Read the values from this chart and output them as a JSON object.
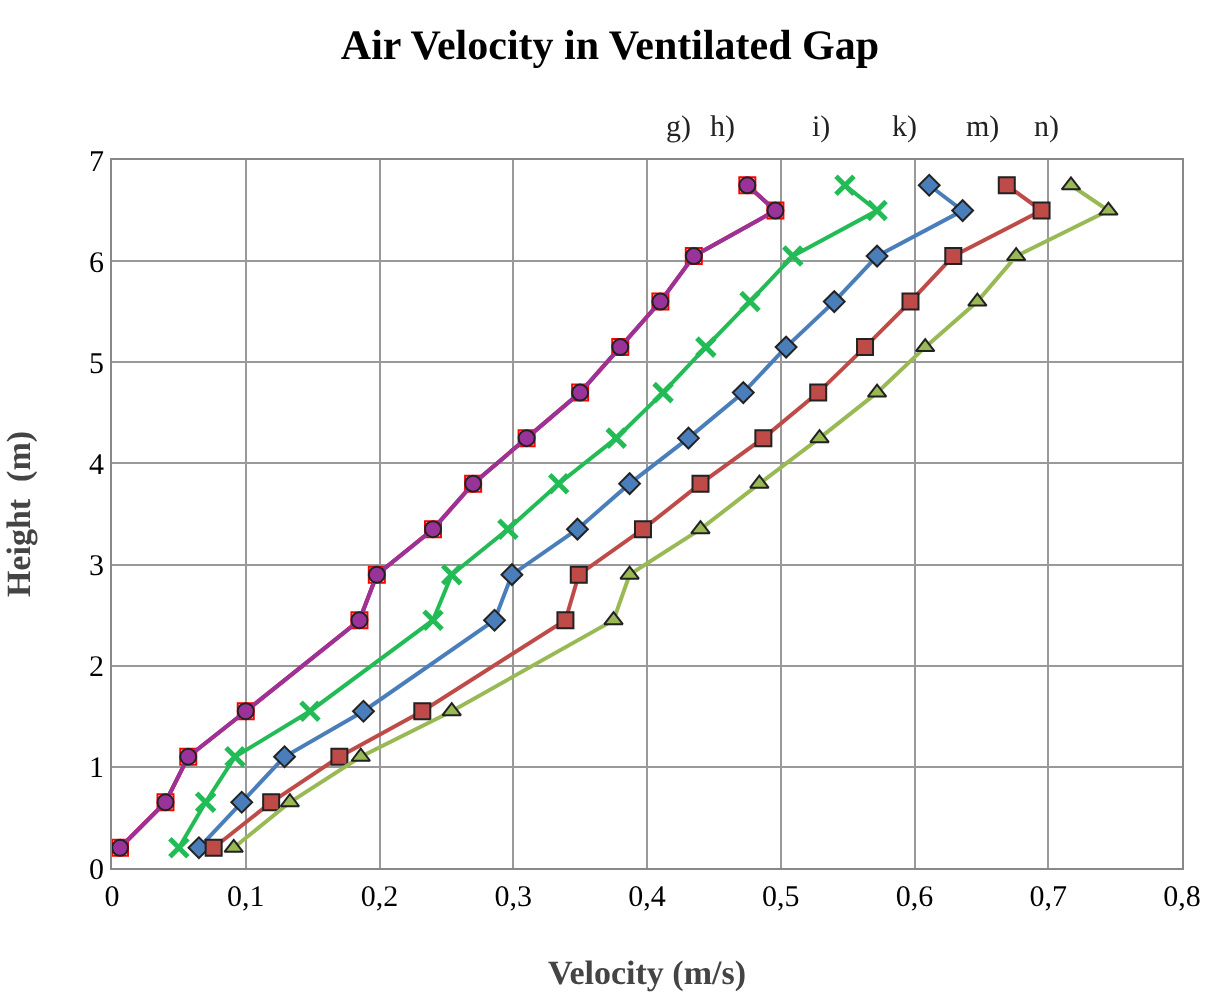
{
  "chart_data": {
    "type": "line",
    "title": "Air Velocity in Ventilated Gap",
    "xlabel": "Velocity (m/s)",
    "ylabel": "Height  (m)",
    "xlim": [
      0,
      0.8
    ],
    "ylim": [
      0,
      7
    ],
    "xticks": [
      0,
      {
        "value": 0.1,
        "label": "0,1"
      },
      {
        "value": 0.2,
        "label": "0,2"
      },
      {
        "value": 0.3,
        "label": "0,3"
      },
      {
        "value": 0.4,
        "label": "0,4"
      },
      {
        "value": 0.5,
        "label": "0,5"
      },
      {
        "value": 0.6,
        "label": "0,6"
      },
      {
        "value": 0.7,
        "label": "0,7"
      },
      {
        "value": 0.8,
        "label": "0,8"
      }
    ],
    "yticks": [
      0,
      1,
      2,
      3,
      4,
      5,
      6,
      7
    ],
    "grid": true,
    "legend": false,
    "series": [
      {
        "name": "h)",
        "color": "#ff0000",
        "marker": "square",
        "x": [
          0.006,
          0.04,
          0.057,
          0.1,
          0.185,
          0.198,
          0.24,
          0.27,
          0.31,
          0.35,
          0.38,
          0.41,
          0.435,
          0.496,
          0.475
        ],
        "values": [
          0.2,
          0.65,
          1.1,
          1.55,
          2.45,
          2.9,
          3.35,
          3.8,
          4.25,
          4.7,
          5.15,
          5.6,
          6.05,
          6.5,
          6.75
        ]
      },
      {
        "name": "g)",
        "color": "#993399",
        "marker": "circle",
        "x": [
          0.006,
          0.04,
          0.057,
          0.1,
          0.185,
          0.198,
          0.24,
          0.27,
          0.31,
          0.35,
          0.38,
          0.41,
          0.435,
          0.496,
          0.475
        ],
        "values": [
          0.2,
          0.65,
          1.1,
          1.55,
          2.45,
          2.9,
          3.35,
          3.8,
          4.25,
          4.7,
          5.15,
          5.6,
          6.05,
          6.5,
          6.75
        ]
      },
      {
        "name": "i)",
        "color": "#22bb55",
        "marker": "cross",
        "x": [
          0.05,
          0.07,
          0.092,
          0.148,
          0.24,
          0.254,
          0.296,
          0.334,
          0.377,
          0.412,
          0.444,
          0.477,
          0.509,
          0.572,
          0.548
        ],
        "values": [
          0.2,
          0.65,
          1.1,
          1.55,
          2.45,
          2.9,
          3.35,
          3.8,
          4.25,
          4.7,
          5.15,
          5.6,
          6.05,
          6.5,
          6.75
        ]
      },
      {
        "name": "k)",
        "color": "#4a7ebb",
        "marker": "diamond",
        "x": [
          0.065,
          0.097,
          0.129,
          0.188,
          0.286,
          0.299,
          0.348,
          0.387,
          0.431,
          0.472,
          0.504,
          0.54,
          0.572,
          0.636,
          0.611
        ],
        "values": [
          0.2,
          0.65,
          1.1,
          1.55,
          2.45,
          2.9,
          3.35,
          3.8,
          4.25,
          4.7,
          5.15,
          5.6,
          6.05,
          6.5,
          6.75
        ]
      },
      {
        "name": "m)",
        "color": "#be4b48",
        "marker": "square",
        "x": [
          0.076,
          0.119,
          0.17,
          0.232,
          0.339,
          0.349,
          0.397,
          0.44,
          0.487,
          0.528,
          0.563,
          0.597,
          0.629,
          0.695,
          0.669
        ],
        "values": [
          0.2,
          0.65,
          1.1,
          1.55,
          2.45,
          2.9,
          3.35,
          3.8,
          4.25,
          4.7,
          5.15,
          5.6,
          6.05,
          6.5,
          6.75
        ]
      },
      {
        "name": "n)",
        "color": "#98b954",
        "marker": "triangle",
        "x": [
          0.091,
          0.133,
          0.186,
          0.254,
          0.375,
          0.387,
          0.44,
          0.484,
          0.529,
          0.572,
          0.608,
          0.647,
          0.676,
          0.745,
          0.717
        ],
        "values": [
          0.2,
          0.65,
          1.1,
          1.55,
          2.45,
          2.9,
          3.35,
          3.8,
          4.25,
          4.7,
          5.15,
          5.6,
          6.05,
          6.5,
          6.75
        ]
      }
    ]
  }
}
